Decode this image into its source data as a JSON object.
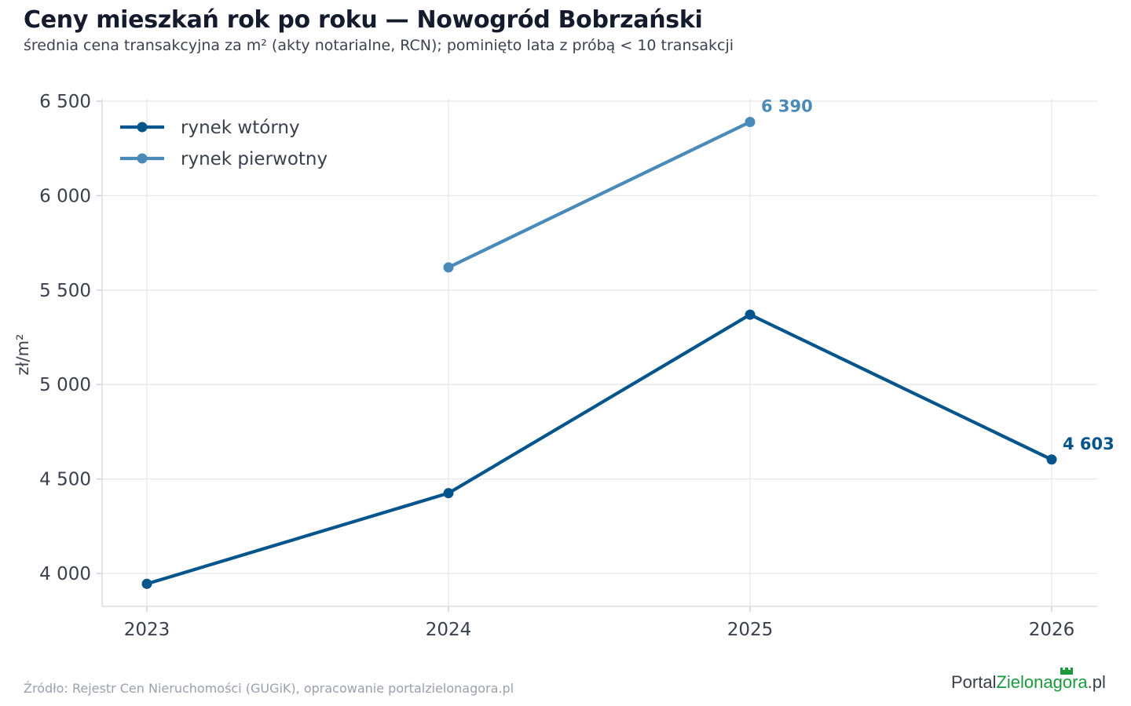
{
  "header": {
    "title": "Ceny mieszkań rok po roku — Nowogród Bobrzański",
    "subtitle": "średnia cena transakcyjna za m² (akty notarialne, RCN); pominięto lata z próbą < 10 transakcji"
  },
  "footer": {
    "source": "Źródło: Rejestr Cen Nieruchomości (GUGiK), opracowanie portalzielonagora.pl",
    "logo_part1": "Portal",
    "logo_part2": "Zielonagora",
    "logo_part3": ".pl"
  },
  "chart_data": {
    "type": "line",
    "x": [
      2023,
      2024,
      2025,
      2026
    ],
    "x_tick_labels": [
      "2023",
      "2024",
      "2025",
      "2026"
    ],
    "y_ticks": [
      4000,
      4500,
      5000,
      5500,
      6000,
      6500
    ],
    "y_tick_labels": [
      "4 000",
      "4 500",
      "5 000",
      "5 500",
      "6 000",
      "6 500"
    ],
    "ylabel": "zł/m²",
    "xlabel": "",
    "ylim": [
      3830,
      6510
    ],
    "grid": true,
    "legend_position": "top-left",
    "series": [
      {
        "name": "rynek wtórny",
        "color": "#03558c",
        "x": [
          2023,
          2024,
          2025,
          2026
        ],
        "values": [
          3945,
          4425,
          5370,
          4603
        ],
        "end_label": "4 603"
      },
      {
        "name": "rynek pierwotny",
        "color": "#4a8ab9",
        "x": [
          2024,
          2025
        ],
        "values": [
          5620,
          6390
        ],
        "end_label": "6 390"
      }
    ]
  }
}
